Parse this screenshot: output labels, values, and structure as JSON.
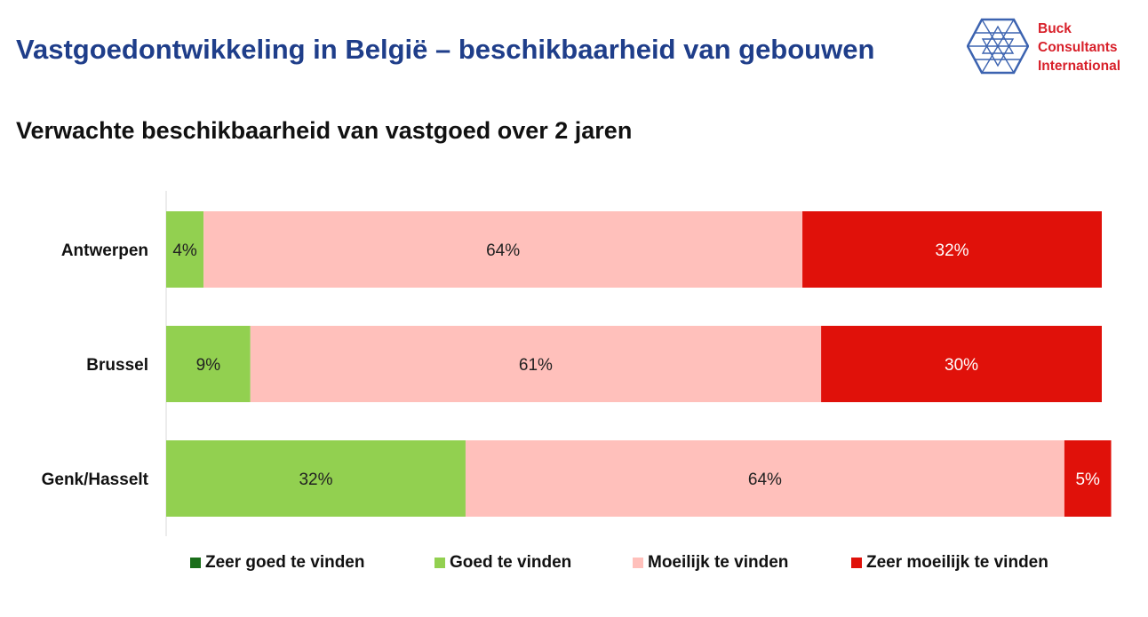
{
  "header": {
    "title": "Vastgoedontwikkeling in België – beschikbaarheid van gebouwen",
    "logo_lines": [
      "Buck",
      "Consultants",
      "International"
    ]
  },
  "chart_data": {
    "type": "bar",
    "orientation": "horizontal",
    "stacked": true,
    "title": "Verwachte beschikbaarheid van vastgoed over 2 jaren",
    "categories": [
      "Antwerpen",
      "Brussel",
      "Genk/Hasselt"
    ],
    "series": [
      {
        "name": "Zeer goed te vinden",
        "color": "#1a6e1a",
        "values": [
          0,
          0,
          0
        ]
      },
      {
        "name": "Goed te vinden",
        "color": "#92d050",
        "values": [
          4,
          9,
          32
        ]
      },
      {
        "name": "Moeilijk te vinden",
        "color": "#ffc0bb",
        "values": [
          64,
          61,
          64
        ]
      },
      {
        "name": "Zeer moeilijk te vinden",
        "color": "#e0110a",
        "values": [
          32,
          30,
          5
        ]
      }
    ],
    "data_labels": [
      [
        "",
        "4%",
        "64%",
        "32%"
      ],
      [
        "",
        "9%",
        "61%",
        "30%"
      ],
      [
        "",
        "32%",
        "64%",
        "5%"
      ]
    ],
    "label_colors": [
      "#ffffff",
      "#222222",
      "#222222",
      "#ffffff"
    ],
    "xlim": [
      0,
      100
    ],
    "legend": "bottom",
    "grid": false
  }
}
